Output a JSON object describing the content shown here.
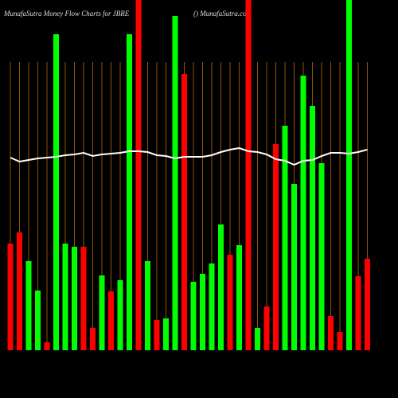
{
  "chart_data": {
    "type": "bar",
    "title": "MunafaSutra  Money Flow  Charts for JBRE",
    "subtitle": "() MunafaSutra.com",
    "categories": [
      null,
      null,
      null,
      null,
      null,
      null,
      null,
      null,
      null,
      null,
      null,
      null,
      null,
      null,
      null,
      null,
      null,
      null,
      null,
      null,
      null,
      null,
      null,
      null,
      null,
      null,
      null,
      null,
      null,
      null,
      null,
      null,
      null,
      null,
      null,
      null,
      null,
      null,
      null,
      null
    ],
    "values": [
      134,
      148,
      112,
      75,
      10,
      397,
      134,
      130,
      130,
      28,
      94,
      74,
      88,
      397,
      440,
      112,
      38,
      40,
      420,
      347,
      86,
      96,
      109,
      158,
      120,
      132,
      440,
      28,
      55,
      259,
      282,
      209,
      345,
      307,
      235,
      43,
      23,
      440,
      93,
      115
    ],
    "bar_colors": [
      "#ff0000",
      "#ff0000",
      "#00ff00",
      "#00ff00",
      "#ff0000",
      "#00ff00",
      "#00ff00",
      "#00ff00",
      "#ff0000",
      "#ff0000",
      "#00ff00",
      "#ff0000",
      "#00ff00",
      "#00ff00",
      "#ff0000",
      "#00ff00",
      "#ff0000",
      "#00ff00",
      "#00ff00",
      "#ff0000",
      "#00ff00",
      "#00ff00",
      "#00ff00",
      "#00ff00",
      "#ff0000",
      "#00ff00",
      "#ff0000",
      "#00ff00",
      "#ff0000",
      "#ff0000",
      "#00ff00",
      "#00ff00",
      "#00ff00",
      "#00ff00",
      "#00ff00",
      "#ff0000",
      "#ff0000",
      "#00ff00",
      "#ff0000",
      "#ff0000"
    ],
    "line": {
      "color": "#ffffff",
      "values": [
        242,
        237,
        239,
        241,
        242,
        243,
        245,
        246,
        248,
        244,
        246,
        247,
        248,
        250,
        250,
        249,
        245,
        244,
        241,
        243,
        243,
        243,
        245,
        249,
        252,
        254,
        250,
        249,
        246,
        240,
        238,
        233,
        238,
        239,
        244,
        248,
        248,
        247,
        249,
        252
      ]
    },
    "ylim": [
      0,
      440
    ],
    "grid": true,
    "grid_color": "#b8660b"
  }
}
